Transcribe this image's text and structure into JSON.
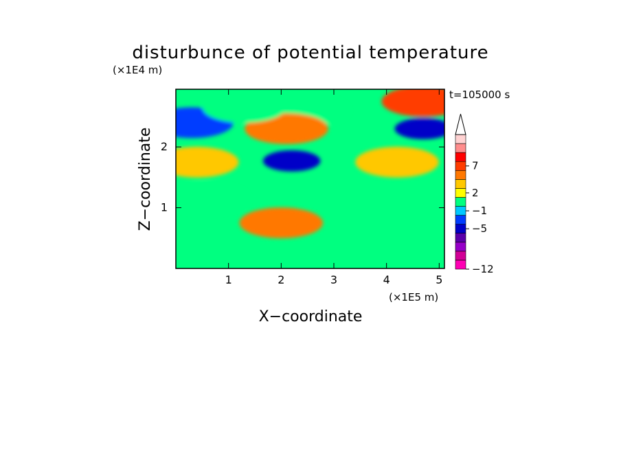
{
  "chart_data": {
    "type": "heatmap",
    "title": "disturbunce of potential temperature",
    "xlabel": "X−coordinate",
    "ylabel": "Z−coordinate",
    "x_unit": "(×1E5 m)",
    "y_unit": "(×1E4 m)",
    "time_label": "t=105000 s",
    "xlim": [
      0,
      5.1
    ],
    "ylim": [
      0,
      2.95
    ],
    "x_ticks": [
      "1",
      "2",
      "3",
      "4",
      "5"
    ],
    "y_ticks": [
      "1",
      "2"
    ],
    "colorbar": {
      "tick_labels": [
        "7",
        "2",
        "−1",
        "−5",
        "−12"
      ],
      "colors": [
        "#ff00b4",
        "#d20096",
        "#9600c8",
        "#5a00aa",
        "#0000c8",
        "#003cff",
        "#00c8ff",
        "#00ff80",
        "#ffff00",
        "#ffc800",
        "#ff7800",
        "#ff3c00",
        "#ff0000",
        "#ff8c8c",
        "#ffd2d2"
      ],
      "extend": "max"
    },
    "features": [
      {
        "x": 2.0,
        "z": 0.75,
        "value": 3
      },
      {
        "x": 2.5,
        "z": 2.6,
        "value": -1
      },
      {
        "x": 2.1,
        "z": 2.3,
        "value": 3
      },
      {
        "x": 2.2,
        "z": 1.77,
        "value": -6
      },
      {
        "x": 0.4,
        "z": 1.75,
        "value": 2
      },
      {
        "x": 0.3,
        "z": 2.4,
        "value": -4
      },
      {
        "x": 0.6,
        "z": 1.15,
        "value": -1
      },
      {
        "x": 4.7,
        "z": 2.3,
        "value": -6
      },
      {
        "x": 4.7,
        "z": 2.75,
        "value": 4
      },
      {
        "x": 4.2,
        "z": 1.75,
        "value": 2
      },
      {
        "x": 1.3,
        "z": 2.65,
        "value": -2
      }
    ]
  }
}
